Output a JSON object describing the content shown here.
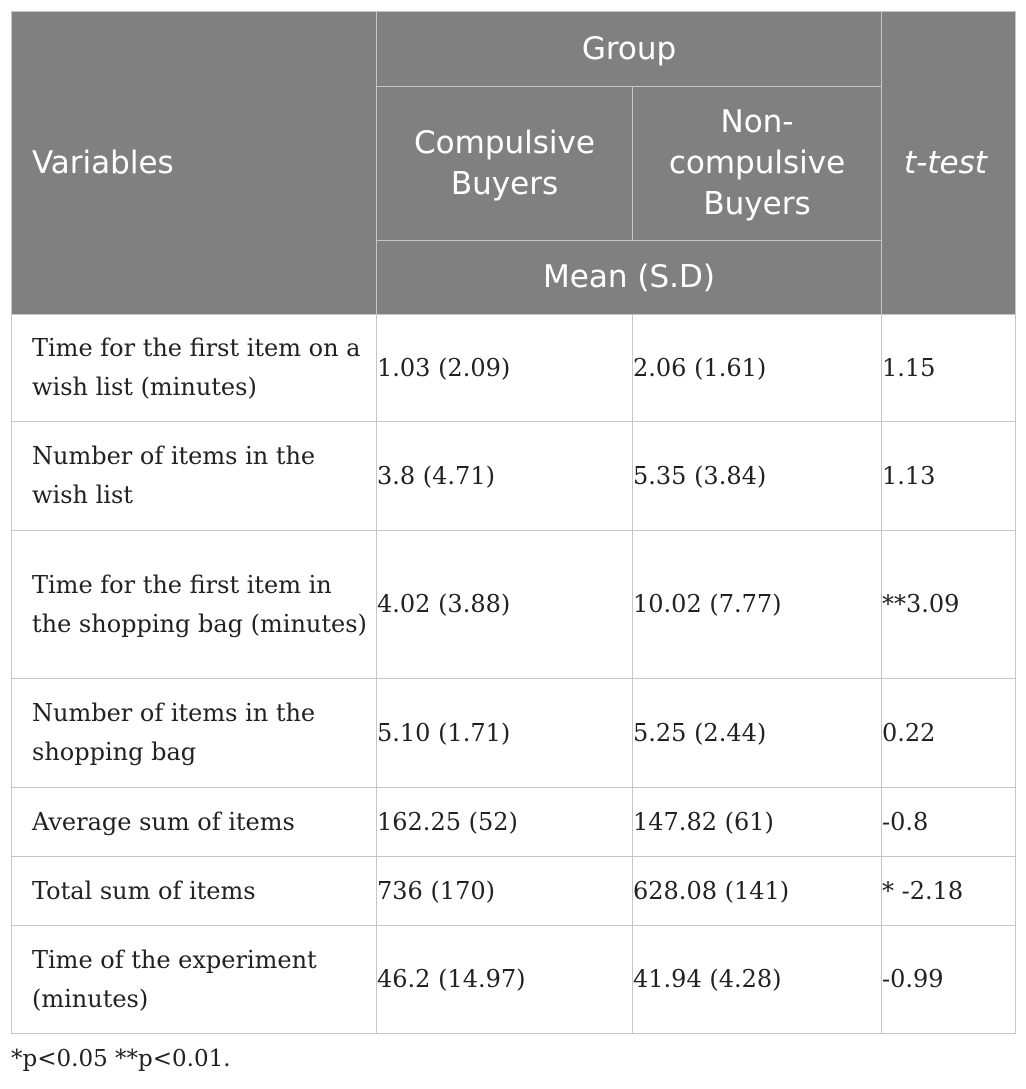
{
  "header": {
    "variables": "Variables",
    "group": "Group",
    "compulsive": "Compulsive Buyers",
    "non_compulsive": "Non-compulsive Buyers",
    "ttest": "t-test",
    "mean_sd": "Mean (S.D)"
  },
  "rows": [
    {
      "label": "Time for the first item on a wish list (minutes)",
      "compulsive": "1.03 (2.09)",
      "non_compulsive": "2.06 (1.61)",
      "ttest": "1.15"
    },
    {
      "label": "Number of items in the wish list",
      "compulsive": "3.8 (4.71)",
      "non_compulsive": "5.35 (3.84)",
      "ttest": "1.13"
    },
    {
      "label": "Time for the first item in the shopping bag (minutes)",
      "compulsive": "4.02 (3.88)",
      "non_compulsive": "10.02 (7.77)",
      "ttest": "**3.09"
    },
    {
      "label": "Number of items in the shopping bag",
      "compulsive": "5.10 (1.71)",
      "non_compulsive": "5.25 (2.44)",
      "ttest": "0.22"
    },
    {
      "label": "Average sum of items",
      "compulsive": "162.25 (52)",
      "non_compulsive": "147.82 (61)",
      "ttest": "-0.8"
    },
    {
      "label": "Total sum of items",
      "compulsive": "736 (170)",
      "non_compulsive": "628.08 (141)",
      "ttest": "* -2.18"
    },
    {
      "label": "Time of the experiment (minutes)",
      "compulsive": "46.2 (14.97)",
      "non_compulsive": "41.94 (4.28)",
      "ttest": "-0.99"
    }
  ],
  "footnote": "*p<0.05 **p<0.01."
}
